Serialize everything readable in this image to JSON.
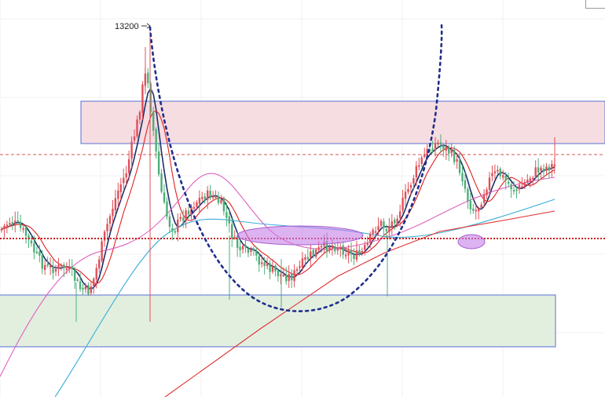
{
  "chart_data": {
    "type": "candlestick",
    "annotations": {
      "peak_label": "13200"
    },
    "colors": {
      "up": "#e0505a",
      "down": "#4caf78",
      "ma_fast": "#1c2f6b",
      "ma_mid": "#e02020",
      "ma_slow_pink": "#e060c0",
      "ma_slow_blue": "#3aaed8",
      "ma_long": "#e03030",
      "resistance_zone": "#f6dde1",
      "support_zone": "#e2efdf",
      "zone_border": "#5a6fd6",
      "neckline": "#c81e1e",
      "cup_curve": "#1f2e8c",
      "highlight": "#c77fe8"
    }
  }
}
